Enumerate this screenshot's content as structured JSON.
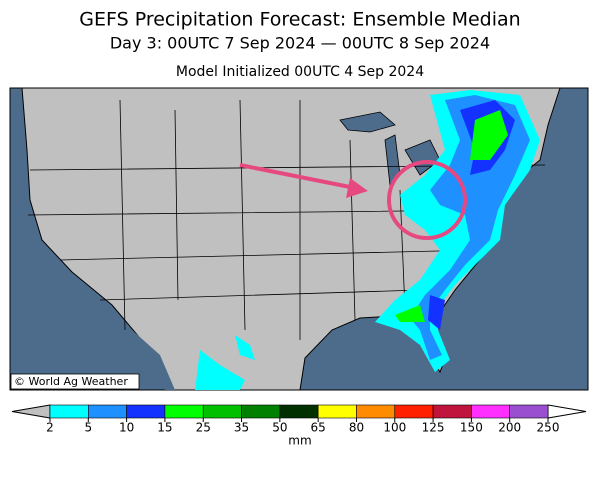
{
  "header": {
    "title": "GEFS Precipitation Forecast: Ensemble Median",
    "subtitle": "Day 3: 00UTC 7 Sep 2024 — 00UTC 8 Sep 2024",
    "initialized": "Model Initialized 00UTC 4 Sep 2024"
  },
  "credit": "© World Ag Weather",
  "colorbar": {
    "ticks": [
      2,
      5,
      10,
      15,
      25,
      35,
      50,
      65,
      80,
      100,
      125,
      150,
      200,
      250
    ],
    "colors": [
      "#00ffff",
      "#1e90ff",
      "#1432ff",
      "#00ff00",
      "#00c000",
      "#008000",
      "#003000",
      "#ffff00",
      "#ff8c00",
      "#ff2000",
      "#c0143c",
      "#ff30ff",
      "#9a4fd0"
    ],
    "under_color": "#c0c0c0",
    "over_color": "#ffffff",
    "unit": "mm"
  }
}
